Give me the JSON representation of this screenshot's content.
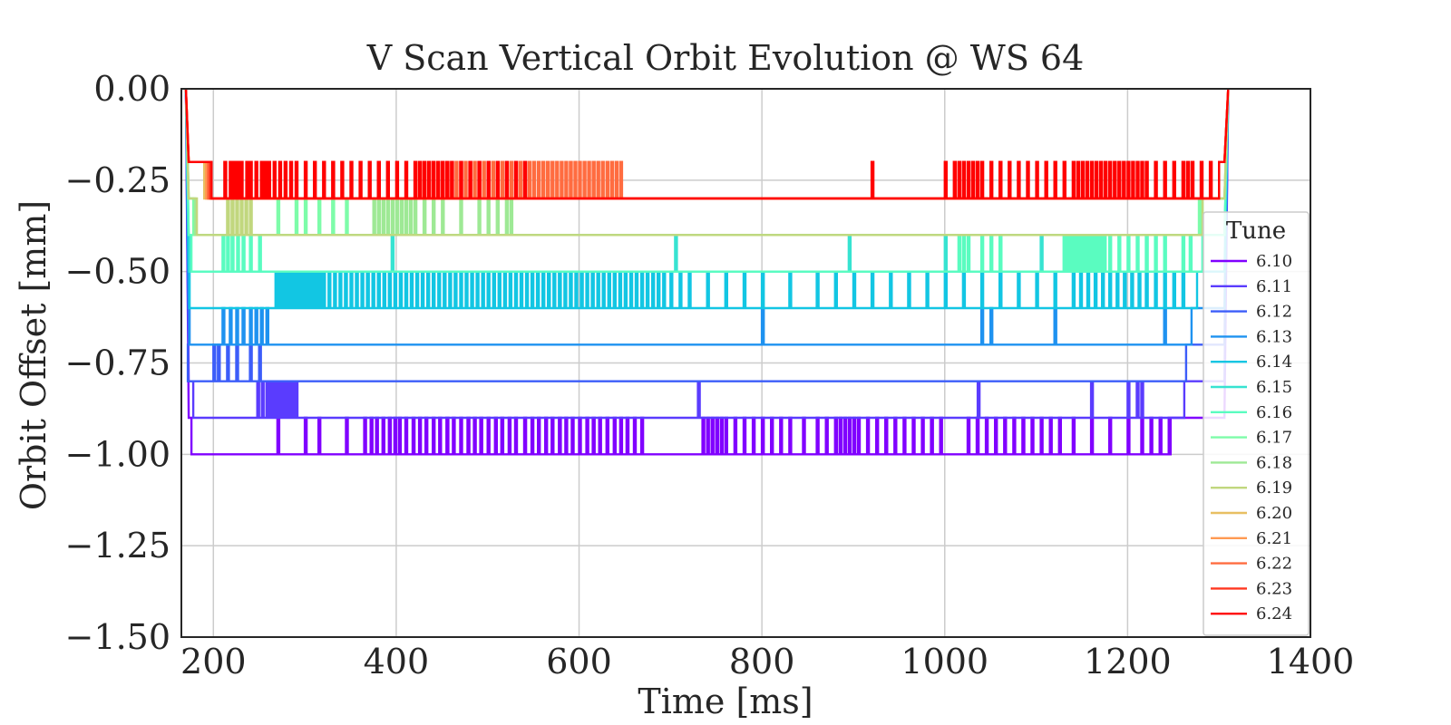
{
  "chart_data": {
    "type": "line",
    "title": "V Scan Vertical Orbit Evolution @ WS 64",
    "xlabel": "Time [ms]",
    "ylabel": "Orbit Offset [mm]",
    "xlim": [
      165,
      1400
    ],
    "ylim": [
      -1.5,
      0.0
    ],
    "xticks": [
      200,
      400,
      600,
      800,
      1000,
      1200,
      1400
    ],
    "xtick_labels": [
      "200",
      "400",
      "600",
      "800",
      "1000",
      "1200",
      "1400"
    ],
    "yticks": [
      0.0,
      -0.25,
      -0.5,
      -0.75,
      -1.0,
      -1.25,
      -1.5
    ],
    "ytick_labels": [
      "0.00",
      "−0.25",
      "−0.50",
      "−0.75",
      "−1.00",
      "−1.25",
      "−1.50"
    ],
    "grid": true,
    "legend": {
      "title": "Tune",
      "placement": "right"
    },
    "series": [
      {
        "name": "6.10",
        "color": "#8000ff",
        "start": 170,
        "end": 1310,
        "base": -1.0,
        "alt": -0.9,
        "step_start": 176,
        "step_end": 1246,
        "spikes": [
          270,
          300,
          315,
          345,
          365,
          372,
          378,
          385,
          392,
          398,
          403,
          410,
          418,
          425,
          432,
          440,
          447,
          455,
          462,
          470,
          478,
          485,
          492,
          500,
          508,
          515,
          523,
          530,
          540,
          548,
          555,
          563,
          570,
          578,
          585,
          592,
          600,
          608,
          615,
          622,
          630,
          638,
          645,
          652,
          660,
          668,
          735,
          740,
          745,
          750,
          755,
          760,
          770,
          780,
          790,
          800,
          810,
          820,
          830,
          845,
          860,
          870,
          880,
          885,
          890,
          895,
          900,
          905,
          915,
          925,
          935,
          945,
          955,
          965,
          975,
          985,
          995,
          1025,
          1035,
          1045,
          1055,
          1065,
          1075,
          1085,
          1095,
          1105,
          1115,
          1125,
          1140,
          1160,
          1180,
          1200,
          1215,
          1225,
          1235,
          1245
        ]
      },
      {
        "name": "6.11",
        "color": "#5a3cfe",
        "start": 170,
        "end": 1310,
        "base": -0.9,
        "alt": -0.8,
        "step_start": 178,
        "step_end": 1262,
        "spikes": [
          248,
          253,
          258,
          262,
          266,
          270,
          274,
          278,
          282,
          286,
          290,
          730,
          1036,
          1160,
          1200,
          1210,
          1215
        ]
      },
      {
        "name": "6.12",
        "color": "#3c5df9",
        "start": 170,
        "end": 1310,
        "base": -0.8,
        "alt": -0.7,
        "step_start": 172,
        "step_end": 1264,
        "spikes": [
          200,
          205,
          215,
          225,
          240,
          250
        ]
      },
      {
        "name": "6.13",
        "color": "#1e92f0",
        "start": 170,
        "end": 1310,
        "base": -0.7,
        "alt": -0.6,
        "step_start": 174,
        "step_end": 1270,
        "spikes": [
          210,
          218,
          225,
          232,
          240,
          246,
          252,
          258,
          800,
          1040,
          1050,
          1120,
          1240
        ]
      },
      {
        "name": "6.14",
        "color": "#12c6e3",
        "start": 170,
        "end": 1310,
        "base": -0.6,
        "alt": -0.5,
        "step_start": 174,
        "step_end": 1276,
        "spikes": [
          268,
          272,
          276,
          280,
          284,
          288,
          292,
          296,
          300,
          304,
          308,
          312,
          316,
          320,
          326,
          332,
          338,
          344,
          350,
          356,
          362,
          368,
          374,
          380,
          386,
          392,
          398,
          404,
          410,
          416,
          422,
          428,
          434,
          440,
          446,
          452,
          458,
          464,
          470,
          476,
          482,
          488,
          494,
          500,
          506,
          512,
          518,
          524,
          530,
          536,
          542,
          548,
          554,
          560,
          566,
          572,
          578,
          584,
          590,
          596,
          602,
          608,
          614,
          620,
          626,
          632,
          638,
          644,
          650,
          656,
          662,
          668,
          674,
          680,
          686,
          692,
          700,
          710,
          720,
          740,
          760,
          780,
          800,
          830,
          860,
          880,
          900,
          920,
          940,
          960,
          980,
          1000,
          1020,
          1040,
          1060,
          1080,
          1100,
          1120,
          1140,
          1148,
          1156,
          1164,
          1172,
          1180,
          1188,
          1196,
          1204,
          1212,
          1220,
          1230,
          1240,
          1250,
          1260
        ]
      },
      {
        "name": "6.15",
        "color": "#37e3d1",
        "start": 170,
        "end": 1310,
        "base": -0.5,
        "alt": -0.4,
        "step_start": 174,
        "step_end": 1282,
        "spikes": [
          395,
          705,
          895,
          1000,
          1105
        ]
      },
      {
        "name": "6.16",
        "color": "#5afcc0",
        "start": 170,
        "end": 1310,
        "base": -0.5,
        "alt": -0.4,
        "step_start": 176,
        "step_end": 1282,
        "spikes": [
          210,
          215,
          220,
          226,
          232,
          240,
          250,
          1015,
          1020,
          1025,
          1040,
          1050,
          1060,
          1130,
          1134,
          1138,
          1142,
          1146,
          1150,
          1154,
          1158,
          1162,
          1166,
          1170,
          1174,
          1180,
          1190,
          1200,
          1210,
          1220,
          1230,
          1240,
          1260,
          1268
        ]
      },
      {
        "name": "6.17",
        "color": "#7dfca9",
        "start": 170,
        "end": 1310,
        "base": -0.4,
        "alt": -0.3,
        "step_start": 178,
        "step_end": 1282,
        "spikes": [
          270,
          290,
          300,
          315,
          330,
          345,
          1278
        ]
      },
      {
        "name": "6.18",
        "color": "#9ee995",
        "start": 170,
        "end": 1310,
        "base": -0.4,
        "alt": -0.3,
        "step_start": 180,
        "step_end": 1282,
        "spikes": [
          375,
          380,
          385,
          390,
          395,
          400,
          405,
          410,
          415,
          420,
          430,
          440,
          450,
          470,
          490,
          500,
          510,
          520,
          525
        ]
      },
      {
        "name": "6.19",
        "color": "#c1d77e",
        "start": 170,
        "end": 1310,
        "base": -0.4,
        "alt": -0.3,
        "step_start": 182,
        "step_end": 1282,
        "spikes": [
          215,
          220,
          225,
          230,
          235,
          240
        ]
      },
      {
        "name": "6.20",
        "color": "#e8bf62",
        "start": 170,
        "end": 1310,
        "base": -0.3,
        "alt": -0.2,
        "step_start": 190,
        "step_end": 1300,
        "spikes": []
      },
      {
        "name": "6.21",
        "color": "#ff9a52",
        "start": 170,
        "end": 1310,
        "base": -0.3,
        "alt": -0.2,
        "step_start": 192,
        "step_end": 1300,
        "spikes": []
      },
      {
        "name": "6.22",
        "color": "#ff6c40",
        "start": 170,
        "end": 1310,
        "base": -0.3,
        "alt": -0.2,
        "step_start": 194,
        "step_end": 1300,
        "spikes": [
          420,
          425,
          430,
          435,
          440,
          445,
          450,
          455,
          460,
          465,
          470,
          475,
          480,
          485,
          490,
          495,
          500,
          505,
          510,
          515,
          520,
          525,
          530,
          535,
          540,
          545,
          550,
          555,
          560,
          565,
          570,
          575,
          580,
          585,
          590,
          595,
          600,
          605,
          610,
          615,
          620,
          625,
          630,
          635,
          640,
          645
        ]
      },
      {
        "name": "6.23",
        "color": "#ff3720",
        "start": 170,
        "end": 1310,
        "base": -0.3,
        "alt": -0.2,
        "step_start": 196,
        "step_end": 1300,
        "spikes": []
      },
      {
        "name": "6.24",
        "color": "#ff0000",
        "start": 170,
        "end": 1310,
        "base": -0.3,
        "alt": -0.2,
        "step_start": 198,
        "step_end": 1300,
        "spikes": [
          212,
          218,
          222,
          226,
          230,
          236,
          240,
          246,
          252,
          256,
          260,
          266,
          272,
          278,
          284,
          290,
          300,
          310,
          320,
          330,
          340,
          350,
          360,
          370,
          380,
          390,
          400,
          410,
          420,
          425,
          430,
          435,
          440,
          445,
          450,
          455,
          460,
          470,
          480,
          490,
          500,
          510,
          520,
          530,
          540,
          920,
          1000,
          1010,
          1015,
          1020,
          1025,
          1030,
          1035,
          1040,
          1050,
          1060,
          1070,
          1080,
          1090,
          1100,
          1110,
          1120,
          1130,
          1140,
          1145,
          1150,
          1155,
          1160,
          1165,
          1170,
          1175,
          1180,
          1185,
          1190,
          1195,
          1200,
          1205,
          1210,
          1215,
          1220,
          1230,
          1240,
          1250,
          1260,
          1265,
          1270,
          1280,
          1290
        ]
      }
    ]
  }
}
